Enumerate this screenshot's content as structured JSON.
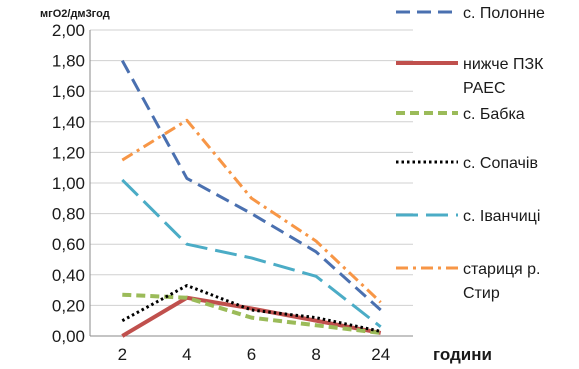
{
  "chart_data": {
    "type": "line",
    "categories": [
      "2",
      "4",
      "6",
      "8",
      "24"
    ],
    "ylabel": "мгО2/дм3год",
    "xlabel": "години",
    "ylim": [
      0,
      2
    ],
    "yticks": [
      "0,00",
      "0,20",
      "0,40",
      "0,60",
      "0,80",
      "1,00",
      "1,20",
      "1,40",
      "1,60",
      "1,80",
      "2,00"
    ],
    "grid": true,
    "legend_position": "right",
    "series": [
      {
        "name": "с. Полонне",
        "values": [
          1.8,
          1.03,
          0.8,
          0.55,
          0.17
        ],
        "color": "#4a70b0",
        "dash": "14 7",
        "width": 3
      },
      {
        "name": "нижче ПЗК РАЕС",
        "values": [
          0.0,
          0.25,
          0.18,
          0.1,
          0.02
        ],
        "color": "#c0504d",
        "dash": "",
        "width": 4
      },
      {
        "name": "с. Бабка",
        "values": [
          0.27,
          0.25,
          0.12,
          0.07,
          0.02
        ],
        "color": "#9bbb59",
        "dash": "9 5",
        "width": 4
      },
      {
        "name": "с. Сопачів",
        "values": [
          0.1,
          0.33,
          0.17,
          0.12,
          0.03
        ],
        "color": "#000000",
        "dash": "2.5 3",
        "width": 3
      },
      {
        "name": "с. Іванчиці",
        "values": [
          1.02,
          0.6,
          0.51,
          0.39,
          0.06
        ],
        "color": "#4bacc6",
        "dash": "22 8",
        "width": 3
      },
      {
        "name": "стариця р. Стир",
        "values": [
          1.15,
          1.41,
          0.9,
          0.62,
          0.22
        ],
        "color": "#f79646",
        "dash": "12 5 3 5",
        "width": 3
      }
    ]
  }
}
